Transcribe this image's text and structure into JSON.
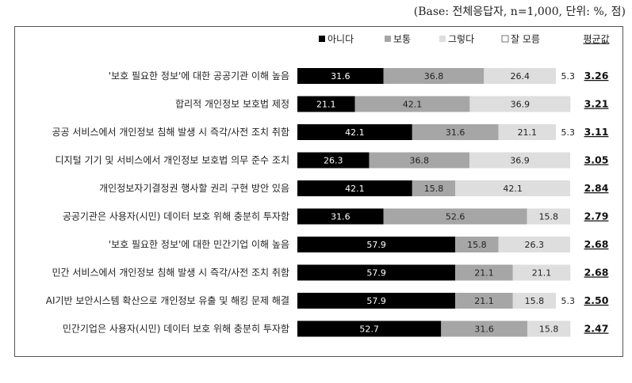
{
  "base_note": "(Base: 전체응답자, n=1,000, 단위: %, 점)",
  "chart_data": {
    "type": "bar",
    "orientation": "horizontal",
    "stacked": true,
    "xlim": [
      0,
      100
    ],
    "categories": [
      "'보호 필요한 정보'에 대한 공공기관 이해 높음",
      "합리적 개인정보 보호법 제정",
      "공공 서비스에서 개인정보 침해 발생 시 즉각/사전 조치 취함",
      "디지털 기기 및 서비스에서 개인정보 보호법 의무 준수 조치",
      "개인정보자기결정권 행사할 권리 구현 방안 있음",
      "공공기관은 사용자(시민) 데이터 보호 위해 충분히 투자함",
      "'보호 필요한 정보'에 대한 민간기업 이해 높음",
      "민간 서비스에서 개인정보 침해 발생 시 즉각/사전 조치 취함",
      "AI기반 보안시스템 확산으로 개인정보 유출 및 해킹 문제 해결",
      "민간기업은 사용자(시민) 데이터 보호 위해 충분히 투자함"
    ],
    "series": [
      {
        "name": "아니다",
        "color": "#000000",
        "label_color": "#ffffff",
        "values": [
          31.6,
          21.1,
          42.1,
          26.3,
          42.1,
          31.6,
          57.9,
          57.9,
          57.9,
          52.7
        ],
        "labels": [
          "31.6",
          "21.1",
          "42.1",
          "26.3",
          "42.1",
          "31.6",
          "57.9",
          "57.9",
          "57.9",
          "52.7"
        ]
      },
      {
        "name": "보통",
        "color": "#a6a6a6",
        "label_color": "#222222",
        "values": [
          36.8,
          42.1,
          31.6,
          36.8,
          15.8,
          52.6,
          15.8,
          21.1,
          21.1,
          31.6
        ],
        "labels": [
          "36.8",
          "42.1",
          "31.6",
          "36.8",
          "15.8",
          "52.6",
          "15.8",
          "21.1",
          "21.1",
          "31.6"
        ]
      },
      {
        "name": "그렇다",
        "color": "#dedede",
        "label_color": "#222222",
        "values": [
          26.4,
          36.9,
          21.1,
          36.9,
          42.1,
          15.8,
          26.3,
          21.1,
          15.8,
          15.8
        ],
        "labels": [
          "26.4",
          "36.9",
          "21.1",
          "36.9",
          "42.1",
          "15.8",
          "26.3",
          "21.1",
          "15.8",
          "15.8"
        ]
      },
      {
        "name": "잘 모름",
        "color": "#ffffff",
        "label_color": "#222222",
        "values": [
          5.3,
          0,
          5.3,
          0,
          0,
          0,
          0,
          0,
          5.3,
          0
        ],
        "labels": [
          "5.3",
          "",
          "5.3",
          "",
          "",
          "",
          "",
          "",
          "5.3",
          ""
        ]
      }
    ],
    "avg_header": "평균값",
    "averages": [
      "3.26",
      "3.21",
      "3.11",
      "3.05",
      "2.84",
      "2.79",
      "2.68",
      "2.68",
      "2.50",
      "2.47"
    ],
    "legend_position": "top"
  }
}
